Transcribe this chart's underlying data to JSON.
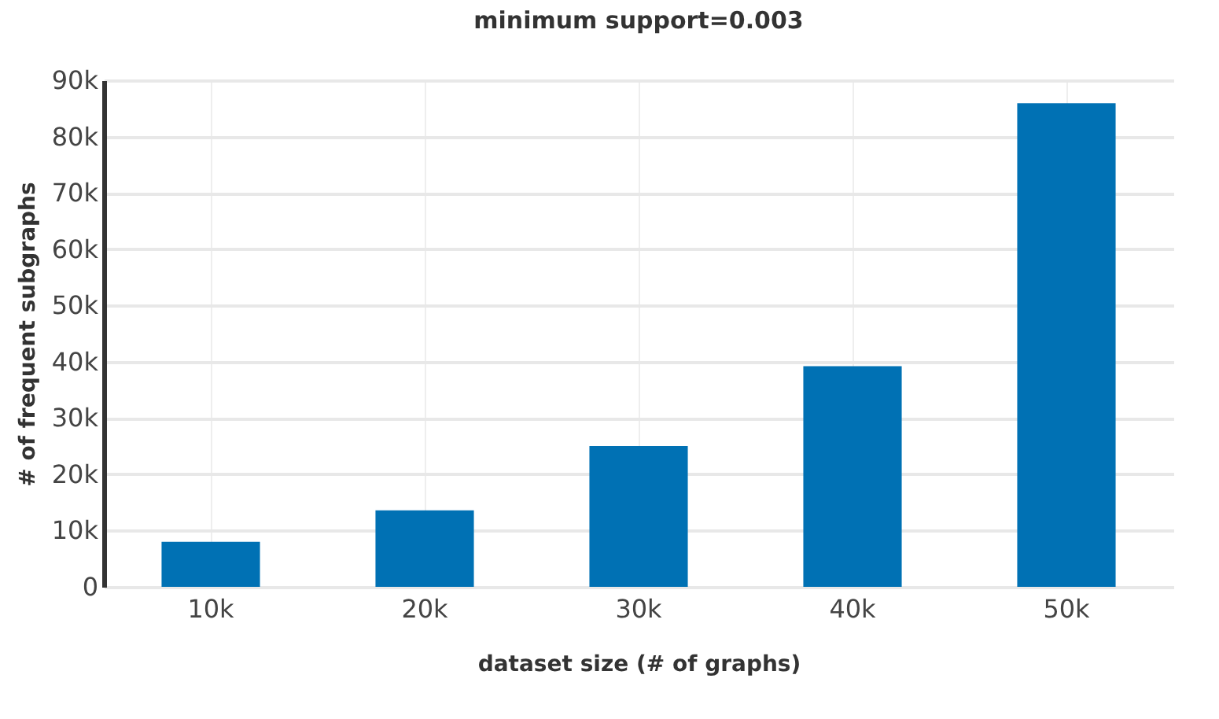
{
  "chart_data": {
    "type": "bar",
    "title": "minimum support=0.003",
    "xlabel": "dataset size (# of graphs)",
    "ylabel": "# of frequent subgraphs",
    "categories": [
      "10k",
      "20k",
      "30k",
      "40k",
      "50k"
    ],
    "values": [
      8000,
      13600,
      25000,
      39200,
      85900
    ],
    "color": "#0071b4",
    "ylim": [
      0,
      90000
    ],
    "yticks": [
      0,
      {
        "value": 10000,
        "label": "10k"
      },
      {
        "value": 20000,
        "label": "20k"
      },
      {
        "value": 30000,
        "label": "30k"
      },
      {
        "value": 40000,
        "label": "40k"
      },
      {
        "value": 50000,
        "label": "50k"
      },
      {
        "value": 60000,
        "label": "60k"
      },
      {
        "value": 70000,
        "label": "70k"
      },
      {
        "value": 80000,
        "label": "80k"
      },
      {
        "value": 90000,
        "label": "90k"
      }
    ],
    "grid": true
  }
}
